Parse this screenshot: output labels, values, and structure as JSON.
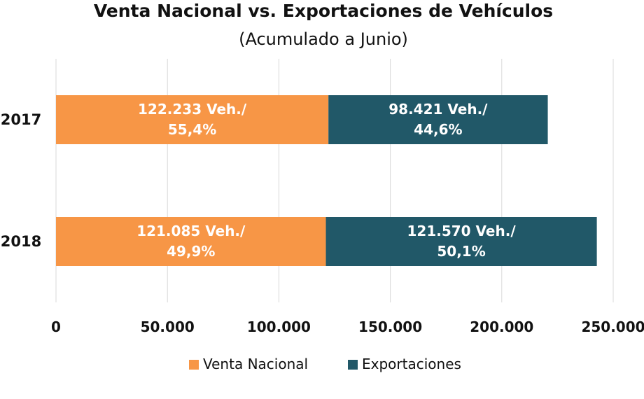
{
  "chart_data": {
    "type": "bar",
    "orientation": "horizontal",
    "stacked": true,
    "title": "Venta Nacional vs. Exportaciones de Vehículos",
    "subtitle": "(Acumulado a Junio)",
    "xlabel": "",
    "ylabel": "",
    "categories": [
      "2017",
      "2018"
    ],
    "series": [
      {
        "name": "Venta Nacional",
        "color": "#f79646",
        "values": [
          122233,
          121085
        ],
        "data_labels": [
          [
            "122.233 Veh./",
            "55,4%"
          ],
          [
            "121.085 Veh./",
            "49,9%"
          ]
        ]
      },
      {
        "name": "Exportaciones",
        "color": "#215868",
        "values": [
          98421,
          121570
        ],
        "data_labels": [
          [
            "98.421 Veh./",
            "44,6%"
          ],
          [
            "121.570 Veh./",
            "50,1%"
          ]
        ]
      }
    ],
    "xlim": [
      0,
      250000
    ],
    "x_ticks": [
      0,
      50000,
      100000,
      150000,
      200000,
      250000
    ],
    "x_tick_labels": [
      "0",
      "50.000",
      "100.000",
      "150.000",
      "200.000",
      "250.000"
    ],
    "grid": "vertical",
    "legend_position": "bottom"
  }
}
